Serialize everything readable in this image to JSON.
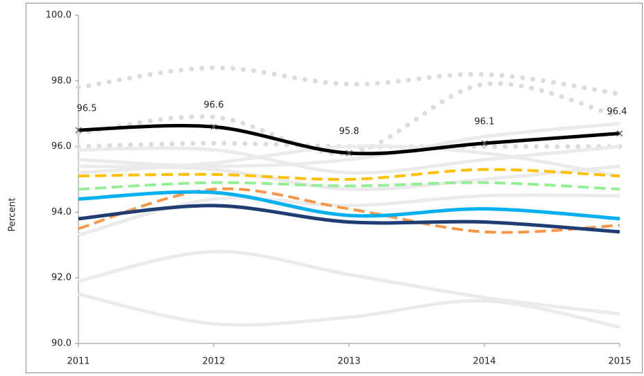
{
  "chart_data": {
    "type": "line",
    "y_label": "Percent",
    "x": [
      2011,
      2012,
      2013,
      2014,
      2015
    ],
    "xlim": [
      2011,
      2015
    ],
    "xticks": [
      2011,
      2012,
      2013,
      2014,
      2015
    ],
    "ylim": [
      90,
      100
    ],
    "yticks": [
      {
        "value": 90,
        "label": "90.0"
      },
      {
        "value": 92,
        "label": "92.0"
      },
      {
        "value": 94,
        "label": "94.0"
      },
      {
        "value": 96,
        "label": "96.0"
      },
      {
        "value": 98,
        "label": "98.0"
      },
      {
        "value": 100,
        "label": "100.0"
      }
    ],
    "series": [
      {
        "color": "#dcdcdc",
        "dash": "dotted",
        "values": [
          97.8,
          98.4,
          97.9,
          98.2,
          97.6
        ]
      },
      {
        "color": "#dcdcdc",
        "dash": "dotted",
        "values": [
          96.4,
          96.9,
          95.8,
          97.9,
          96.9
        ]
      },
      {
        "color": "#dcdcdc",
        "dash": "dotted",
        "values": [
          96.0,
          96.1,
          96.0,
          96.0,
          96.0
        ]
      },
      {
        "color": "#ebebeb",
        "dash": "solid",
        "values": [
          91.9,
          92.8,
          92.1,
          91.4,
          90.9
        ]
      },
      {
        "color": "#ebebeb",
        "dash": "solid",
        "values": [
          91.5,
          90.6,
          90.8,
          91.3,
          90.5
        ]
      },
      {
        "color": "#ebebeb",
        "dash": "solid",
        "values": [
          95.9,
          95.9,
          95.2,
          95.6,
          96.0
        ]
      },
      {
        "color": "#ebebeb",
        "dash": "solid",
        "values": [
          95.6,
          95.4,
          95.6,
          96.3,
          96.7
        ]
      },
      {
        "color": "#ebebeb",
        "dash": "solid",
        "values": [
          95.4,
          95.3,
          94.7,
          95.0,
          95.4
        ]
      },
      {
        "color": "#ebebeb",
        "dash": "solid",
        "values": [
          93.3,
          94.4,
          94.2,
          94.5,
          94.5
        ]
      },
      {
        "color": "#ebebeb",
        "dash": "solid",
        "values": [
          95.2,
          95.5,
          96.0,
          95.8,
          95.1
        ]
      },
      {
        "color": "#f79646",
        "dash": "dashed",
        "values": [
          93.5,
          94.7,
          94.1,
          93.4,
          93.6
        ]
      },
      {
        "color": "#1f3c73",
        "dash": "solid",
        "values": [
          93.8,
          94.2,
          93.7,
          93.7,
          93.4
        ]
      },
      {
        "color": "#00b0f0",
        "dash": "solid",
        "values": [
          94.4,
          94.6,
          93.9,
          94.1,
          93.8
        ]
      },
      {
        "color": "#92f092",
        "dash": "dashed",
        "values": [
          94.7,
          94.9,
          94.8,
          94.9,
          94.7
        ]
      },
      {
        "color": "#ffc000",
        "dash": "dashed",
        "values": [
          95.1,
          95.15,
          95.0,
          95.3,
          95.1
        ]
      },
      {
        "color": "#000000",
        "dash": "solid",
        "marker": "x",
        "show_values": true,
        "values": [
          96.5,
          96.6,
          95.8,
          96.1,
          96.4
        ]
      }
    ]
  }
}
